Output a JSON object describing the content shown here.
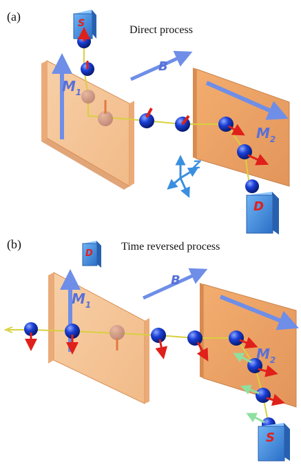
{
  "panel_a": {
    "label": "(a)",
    "title": "Direct process",
    "m1_label": "M",
    "m1_sub": "1",
    "m2_label": "M",
    "m2_sub": "2",
    "b_label": "B",
    "z_label": "Z",
    "source_label": "S",
    "detector_label": "D"
  },
  "panel_b": {
    "label": "(b)",
    "title": "Time reversed process",
    "m1_label": "M",
    "m1_sub": "1",
    "m2_label": "M",
    "m2_sub": "2",
    "b_label": "B",
    "source_label": "S",
    "detector_label": "D"
  },
  "colors": {
    "plate": "#f2b27a",
    "plate_edge": "#d98f55",
    "sphere": "#1a3fd6",
    "spin_arrow": "#e0201a",
    "beam": "#d8d040",
    "field_arrow": "#6e8ee8",
    "box": "#3b8be0",
    "green_arrow": "#8fe0a0"
  }
}
